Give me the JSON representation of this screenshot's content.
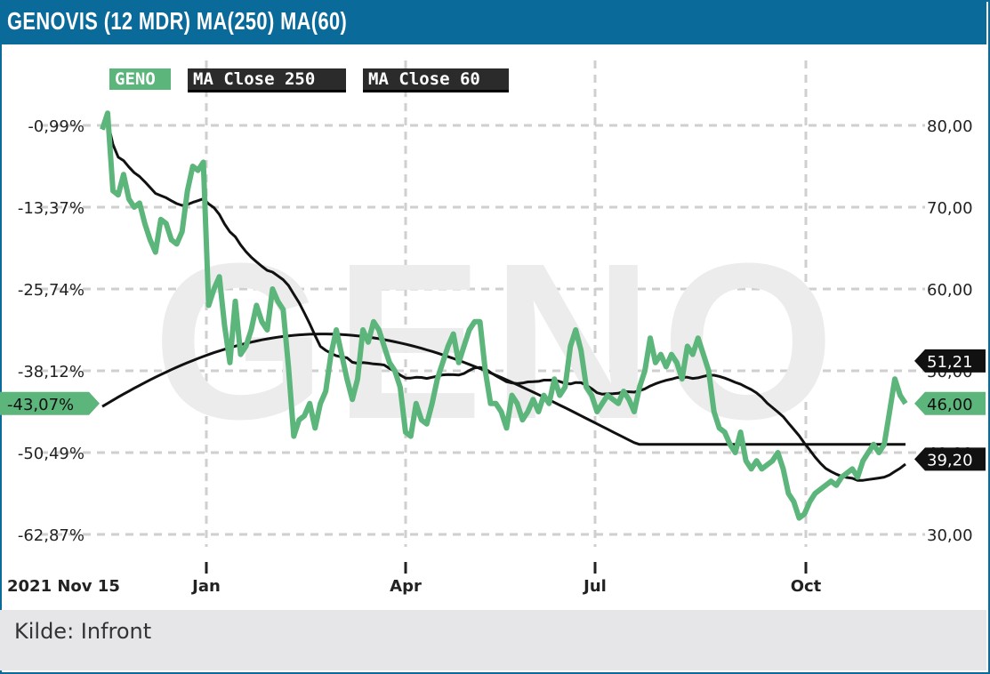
{
  "header": {
    "title": "GENOVIS (12 MDR) MA(250) MA(60)"
  },
  "footer": {
    "source": "Kilde: Infront"
  },
  "colors": {
    "accent": "#0a6a9a",
    "price": "#5cb57a",
    "ma250": "#111111",
    "ma60": "#111111",
    "grid": "#cfcfcf",
    "watermark": "#ececec"
  },
  "chart_data": {
    "type": "line",
    "watermark": "GENO",
    "x_start_label": "2021 Nov 15",
    "x_ticks": [
      "Jan",
      "Apr",
      "Jul",
      "Oct"
    ],
    "left_axis": {
      "ticks": [
        "-0,99%",
        "-13,37%",
        "-25,74%",
        "-38,12%",
        "-50,49%",
        "-62,87%"
      ]
    },
    "right_axis": {
      "ticks": [
        "80,00",
        "70,00",
        "60,00",
        "50,00",
        "40,00",
        "30,00"
      ],
      "ylim": [
        30,
        80
      ]
    },
    "markers": {
      "price_pct": "-43,07%",
      "price_last": "46,00",
      "ma250_last": "51,21",
      "ma60_last": "39,20"
    },
    "series": [
      {
        "name": "GENO",
        "values": [
          79.5,
          81.5,
          72,
          71.5,
          74,
          71,
          70,
          70.5,
          68,
          66,
          64.5,
          68.5,
          68,
          66,
          65.5,
          67,
          72,
          75,
          74.5,
          75.5,
          58,
          60,
          61.5,
          55.5,
          51,
          58.5,
          52,
          53,
          55,
          58,
          56,
          55,
          60,
          58.5,
          57.5,
          50.5,
          42,
          44,
          44.5,
          46,
          43,
          46,
          47.5,
          52,
          55,
          52,
          49,
          46.5,
          49,
          55,
          53.5,
          56,
          55,
          53,
          51,
          50,
          48,
          42.5,
          42,
          46,
          44,
          43.5,
          46,
          49,
          51,
          53,
          54.5,
          51,
          53,
          55,
          56,
          56,
          50,
          46,
          46,
          45,
          43,
          47,
          46,
          44,
          45,
          46.5,
          45,
          47,
          46,
          49,
          47,
          48,
          53,
          55,
          52.5,
          48,
          47,
          45,
          46,
          47,
          46.5,
          46,
          47.5,
          46.5,
          45,
          48,
          50,
          54,
          51,
          52,
          50.5,
          52,
          51,
          49,
          53,
          52,
          54,
          52,
          50,
          45,
          43,
          42.5,
          41,
          40,
          42.5,
          39,
          38,
          39,
          38,
          38.5,
          39,
          40,
          38,
          35,
          34,
          32,
          32.5,
          34,
          35,
          35.5,
          36,
          36.5,
          36,
          37,
          37.5,
          38,
          37,
          39,
          40,
          41,
          40,
          41,
          45,
          49,
          47,
          46
        ]
      },
      {
        "name": "MA Close 250",
        "values": []
      },
      {
        "name": "MA Close 60",
        "values": []
      }
    ]
  }
}
